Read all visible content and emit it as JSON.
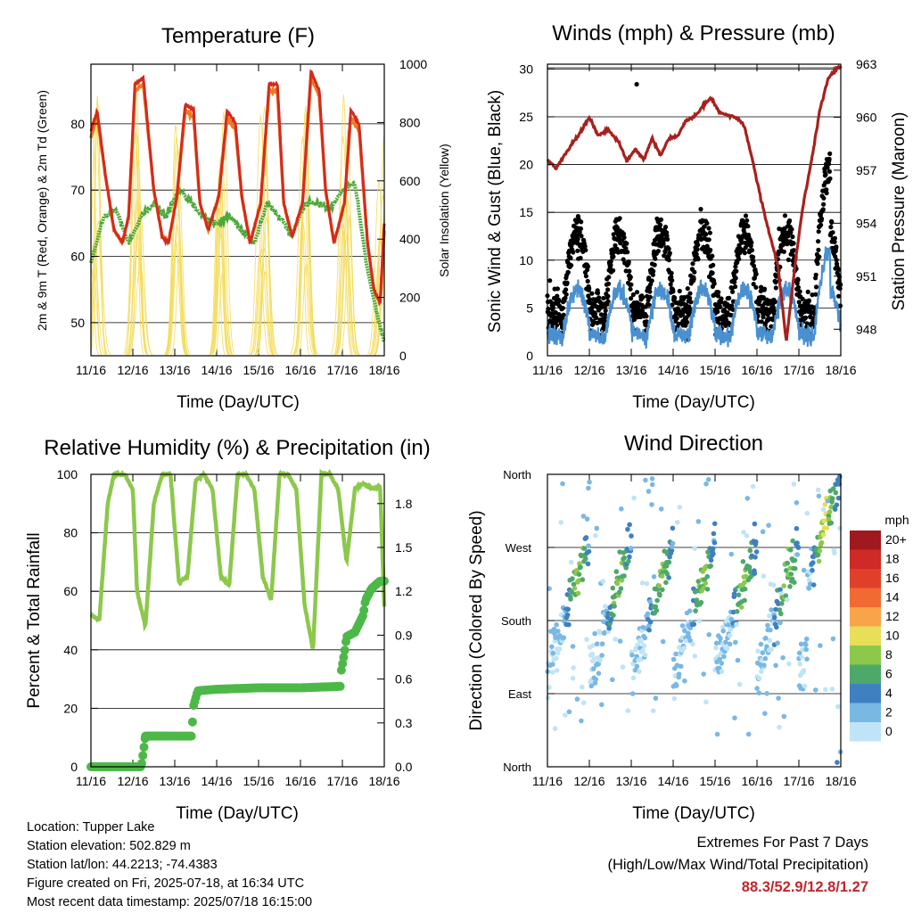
{
  "footer": {
    "location": "Location: Tupper Lake",
    "elevation": "Station elevation: 502.829 m",
    "latlon": "Station lat/lon: 44.2213; -74.4383",
    "created": "Figure created on Fri, 2025-07-18, at 16:34 UTC",
    "recent": "Most recent data timestamp: 2025/07/18 16:15:00",
    "extremes_title": "Extremes For Past 7 Days",
    "extremes_subtitle": "(High/Low/Max Wind/Total Precipitation)",
    "extremes_values": "88.3/52.9/12.8/1.27"
  },
  "colors": {
    "temp": "#d42a1e",
    "temp9m": "#f07a1e",
    "dew": "#4ea83a",
    "solar": "#f4dc5a",
    "wind": "#000000",
    "gust_sonic": "#4a90d0",
    "pressure": "#a6211e",
    "rh": "#8cc84b",
    "precip": "#4db848"
  },
  "chart_data": [
    {
      "id": "temperature",
      "type": "line",
      "title": "Temperature (F)",
      "xlabel": "Time (Day/UTC)",
      "ylabel": "2m & 9m T (Red, Orange) & 2m Td (Green)",
      "y2label": "Solar Insolation (Yellow)",
      "xticks": [
        "11/16",
        "12/16",
        "13/16",
        "14/16",
        "15/16",
        "16/16",
        "17/16",
        "18/16"
      ],
      "xlim": [
        0,
        7
      ],
      "ylim": [
        45,
        89
      ],
      "yticks": [
        50,
        60,
        70,
        80
      ],
      "y2lim": [
        0,
        1000
      ],
      "y2ticks": [
        0,
        200,
        400,
        600,
        800,
        1000
      ],
      "grid": true,
      "series": [
        {
          "name": "2m T",
          "color": "#d42a1e",
          "x": [
            0,
            0.15,
            0.35,
            0.55,
            0.75,
            0.9,
            1.05,
            1.25,
            1.5,
            1.7,
            1.85,
            2.05,
            2.25,
            2.45,
            2.6,
            2.8,
            3.05,
            3.25,
            3.45,
            3.6,
            3.8,
            4.05,
            4.25,
            4.45,
            4.6,
            4.8,
            5.05,
            5.25,
            5.45,
            5.6,
            5.8,
            6.05,
            6.2,
            6.4,
            6.6,
            6.75,
            6.9,
            7.0
          ],
          "y": [
            79,
            82,
            72,
            64,
            62,
            66,
            86,
            87,
            70,
            63,
            62,
            69,
            83,
            82,
            68,
            64,
            69,
            82,
            80,
            69,
            62,
            68,
            86,
            86,
            68,
            63,
            68,
            88,
            85,
            70,
            62,
            68,
            82,
            80,
            62,
            55,
            53,
            65
          ]
        },
        {
          "name": "9m T",
          "color": "#f07a1e",
          "x": [
            0,
            0.15,
            0.35,
            0.55,
            0.75,
            0.9,
            1.05,
            1.25,
            1.5,
            1.7,
            1.85,
            2.05,
            2.25,
            2.45,
            2.6,
            2.8,
            3.05,
            3.25,
            3.45,
            3.6,
            3.8,
            4.05,
            4.25,
            4.45,
            4.6,
            4.8,
            5.05,
            5.25,
            5.45,
            5.6,
            5.8,
            6.05,
            6.2,
            6.4,
            6.6,
            6.75,
            6.9,
            7.0
          ],
          "y": [
            78,
            81,
            72,
            64,
            62,
            66,
            85,
            86,
            70,
            63,
            62,
            69,
            82,
            81,
            68,
            64,
            69,
            81,
            79,
            69,
            62,
            68,
            85,
            85,
            68,
            63,
            68,
            87,
            84,
            70,
            62,
            68,
            81,
            79,
            62,
            55,
            53,
            64
          ]
        },
        {
          "name": "2m Td",
          "color": "#4ea83a",
          "x": [
            0,
            0.3,
            0.6,
            0.9,
            1.2,
            1.5,
            1.8,
            2.1,
            2.4,
            2.7,
            3.0,
            3.3,
            3.6,
            3.9,
            4.2,
            4.5,
            4.8,
            5.1,
            5.4,
            5.7,
            6.0,
            6.3,
            6.6,
            6.8,
            7.0
          ],
          "y": [
            59,
            66,
            67,
            62,
            66,
            68,
            66,
            70,
            68,
            66,
            65,
            66,
            64,
            62,
            68,
            66,
            63,
            68,
            68,
            67,
            70,
            71,
            58,
            52,
            47
          ]
        },
        {
          "name": "Solar",
          "color": "#f4dc5a",
          "axis": "y2",
          "peaks": [
            0.1,
            1.1,
            2.1,
            3.1,
            4.1,
            5.1,
            6.1,
            6.95
          ],
          "peak_values": [
            900,
            950,
            980,
            850,
            900,
            900,
            900,
            830
          ]
        }
      ]
    },
    {
      "id": "winds",
      "type": "scatter",
      "title": "Winds (mph) & Pressure (mb)",
      "xlabel": "Time (Day/UTC)",
      "ylabel": "Sonic Wind & Gust (Blue, Black)",
      "y2label": "Station Pressure (Maroon)",
      "xticks": [
        "11/16",
        "12/16",
        "13/16",
        "14/16",
        "15/16",
        "16/16",
        "17/16",
        "18/16"
      ],
      "xlim": [
        0,
        7
      ],
      "ylim": [
        0,
        30.5
      ],
      "yticks": [
        0,
        5,
        10,
        15,
        20,
        25,
        30
      ],
      "y2lim": [
        946.5,
        963
      ],
      "y2ticks": [
        948,
        951,
        954,
        957,
        960,
        963
      ],
      "grid": true,
      "series": [
        {
          "name": "Station Pressure",
          "color": "#a6211e",
          "axis": "y2",
          "x": [
            0,
            0.2,
            0.5,
            0.8,
            1.0,
            1.2,
            1.45,
            1.7,
            1.9,
            2.1,
            2.3,
            2.5,
            2.7,
            2.9,
            3.1,
            3.3,
            3.5,
            3.7,
            3.9,
            4.1,
            4.3,
            4.5,
            4.7,
            4.9,
            5.1,
            5.3,
            5.5,
            5.7,
            5.9,
            6.1,
            6.3,
            6.5,
            6.7,
            6.9,
            7.0
          ],
          "y": [
            957.6,
            957.1,
            958.2,
            959.2,
            960.0,
            959.0,
            959.3,
            958.6,
            957.5,
            958.2,
            957.6,
            958.8,
            957.8,
            958.8,
            958.9,
            959.8,
            960.0,
            960.6,
            961.1,
            960.3,
            960.1,
            960.0,
            959.5,
            957.5,
            955.3,
            953.4,
            951.6,
            947.3,
            951.5,
            955.0,
            957.5,
            960.4,
            962.2,
            962.8,
            962.8
          ]
        }
      ]
    },
    {
      "id": "humidity",
      "type": "line",
      "title": "Relative Humidity (%) & Precipitation (in)",
      "xlabel": "Time (Day/UTC)",
      "ylabel": "Percent & Total Rainfall",
      "xticks": [
        "11/16",
        "12/16",
        "13/16",
        "14/16",
        "15/16",
        "16/16",
        "17/16",
        "18/16"
      ],
      "xlim": [
        0,
        7
      ],
      "ylim": [
        0,
        100
      ],
      "yticks": [
        0,
        20,
        40,
        60,
        80,
        100
      ],
      "y2lim": [
        0,
        2.0
      ],
      "y2ticks": [
        "0.0",
        "0.3",
        "0.6",
        "0.9",
        "1.2",
        "1.5",
        "1.8"
      ],
      "grid": true,
      "series": [
        {
          "name": "RH",
          "color": "#8cc84b",
          "x": [
            0,
            0.2,
            0.4,
            0.55,
            0.8,
            1.0,
            1.1,
            1.3,
            1.5,
            1.7,
            1.9,
            2.1,
            2.3,
            2.5,
            2.7,
            2.9,
            3.1,
            3.3,
            3.5,
            3.7,
            3.9,
            4.1,
            4.3,
            4.5,
            4.7,
            4.9,
            5.1,
            5.3,
            5.5,
            5.7,
            5.9,
            6.1,
            6.3,
            6.5,
            6.7,
            6.9,
            7.0
          ],
          "y": [
            52,
            50,
            90,
            100,
            100,
            95,
            60,
            48,
            90,
            100,
            100,
            63,
            65,
            98,
            100,
            95,
            65,
            62,
            100,
            100,
            95,
            65,
            57,
            100,
            100,
            95,
            55,
            40,
            100,
            100,
            95,
            70,
            95,
            97,
            95,
            96,
            55
          ]
        },
        {
          "name": "Total Rainfall",
          "color": "#4db848",
          "axis": "y2",
          "x": [
            0,
            1.2,
            1.25,
            1.3,
            2.4,
            2.45,
            2.55,
            3.0,
            4.0,
            5.0,
            5.95,
            5.97,
            6.05,
            6.1,
            6.3,
            6.5,
            6.55,
            6.7,
            6.9,
            7.0
          ],
          "y": [
            0,
            0,
            0.1,
            0.21,
            0.21,
            0.42,
            0.52,
            0.53,
            0.54,
            0.54,
            0.55,
            0.65,
            0.78,
            0.89,
            0.92,
            1.04,
            1.14,
            1.22,
            1.27,
            1.27
          ]
        }
      ]
    },
    {
      "id": "direction",
      "type": "scatter",
      "title": "Wind Direction",
      "xlabel": "Time (Day/UTC)",
      "ylabel": "Direction (Colored By Speed)",
      "xticks": [
        "11/16",
        "12/16",
        "13/16",
        "14/16",
        "15/16",
        "16/16",
        "17/16",
        "18/16"
      ],
      "xlim": [
        0,
        7
      ],
      "ylim": [
        0,
        360
      ],
      "ytick_labels": [
        "North",
        "East",
        "South",
        "West",
        "North"
      ],
      "grid": true,
      "legend": {
        "title": "mph",
        "labels": [
          "20+",
          "18",
          "16",
          "14",
          "12",
          "10",
          "8",
          "6",
          "4",
          "2",
          "0"
        ],
        "colors": [
          "#a0191e",
          "#cf2a25",
          "#e0402a",
          "#f06a32",
          "#f9a448",
          "#e8df58",
          "#8cc84b",
          "#4ea86a",
          "#3f80c0",
          "#7ab8e4",
          "#bfe4f6"
        ]
      }
    }
  ]
}
